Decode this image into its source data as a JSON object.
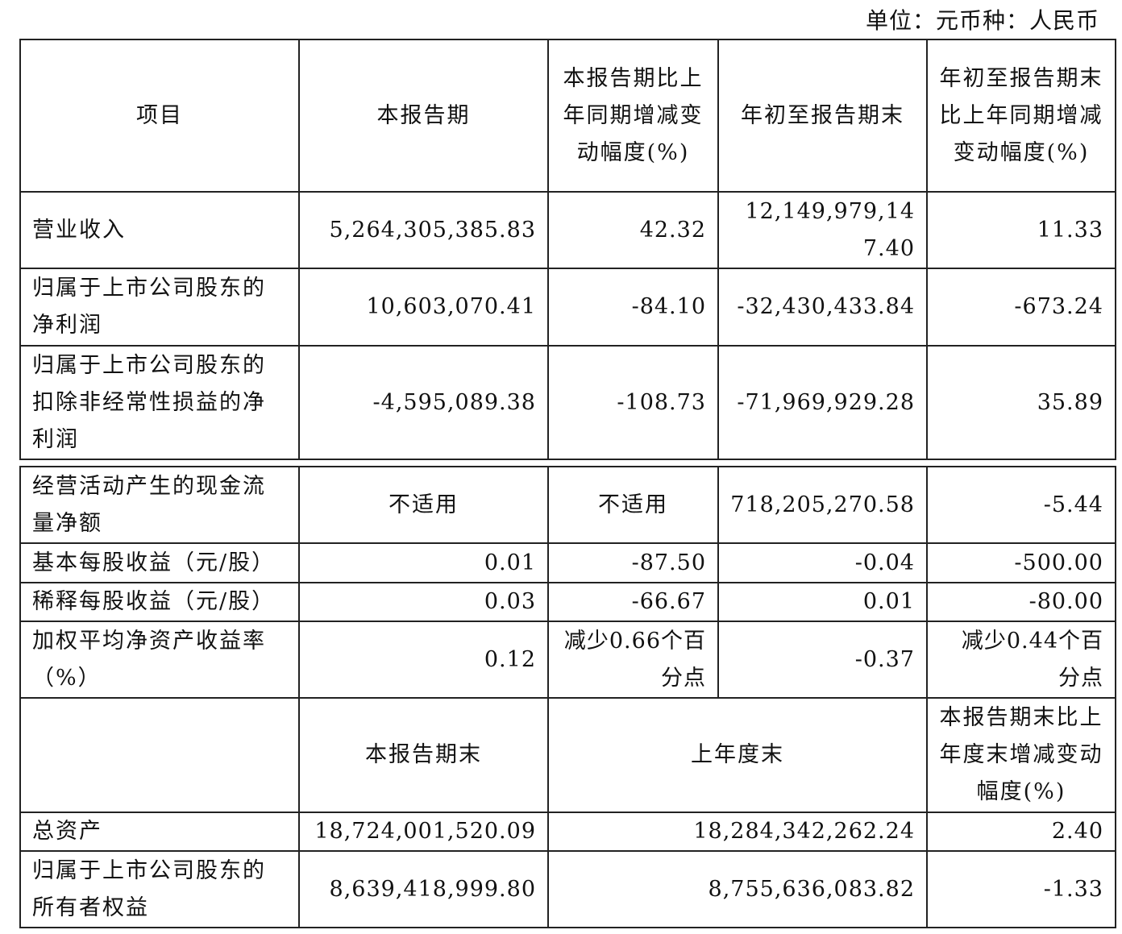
{
  "unit_label": "单位：元币种：人民币",
  "table1": {
    "header": [
      "项目",
      "本报告期",
      "本报告期比上年同期增减变动幅度(%)",
      "年初至报告期末",
      "年初至报告期末比上年同期增减变动幅度(%)"
    ],
    "rows": [
      [
        "营业收入",
        "5,264,305,385.83",
        "42.32",
        "12,149,979,147.40",
        "11.33"
      ],
      [
        "归属于上市公司股东的净利润",
        "10,603,070.41",
        "-84.10",
        "-32,430,433.84",
        "-673.24"
      ],
      [
        "归属于上市公司股东的扣除非经常性损益的净利润",
        "-4,595,089.38",
        "-108.73",
        "-71,969,929.28",
        "35.89"
      ]
    ]
  },
  "table2": {
    "rows": [
      [
        "经营活动产生的现金流量净额",
        "不适用",
        "不适用",
        "718,205,270.58",
        "-5.44"
      ],
      [
        "基本每股收益（元/股）",
        "0.01",
        "-87.50",
        "-0.04",
        "-500.00"
      ],
      [
        "稀释每股收益（元/股）",
        "0.03",
        "-66.67",
        "0.01",
        "-80.00"
      ],
      [
        "加权平均净资产收益率（%）",
        "0.12",
        "减少0.66个百分点",
        "-0.37",
        "减少0.44个百分点"
      ]
    ],
    "subheader": [
      "",
      "本报告期末",
      "上年度末",
      "本报告期末比上年度末增减变动幅度(%)"
    ],
    "balance_rows": [
      [
        "总资产",
        "18,724,001,520.09",
        "18,284,342,262.24",
        "2.40"
      ],
      [
        "归属于上市公司股东的所有者权益",
        "8,639,418,999.80",
        "8,755,636,083.82",
        "-1.33"
      ]
    ]
  }
}
